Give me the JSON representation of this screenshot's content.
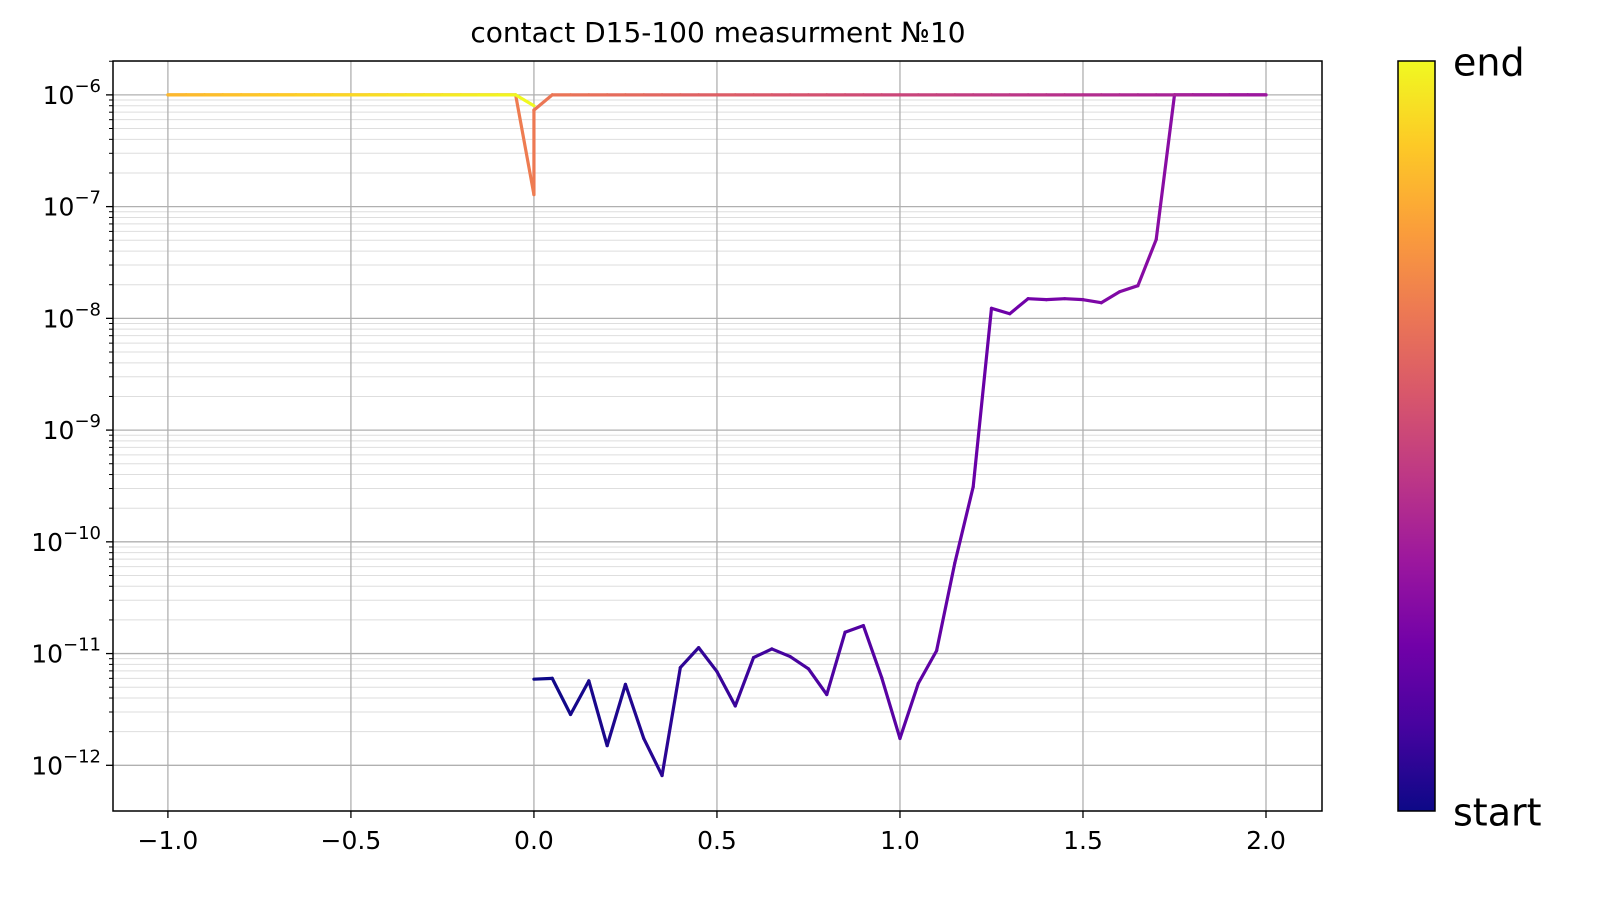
{
  "chart_data": {
    "type": "line",
    "title": "contact D15-100 measurment №10",
    "x": [
      0,
      0.05,
      0.1,
      0.15,
      0.2,
      0.25,
      0.3,
      0.35,
      0.4,
      0.45,
      0.5,
      0.55,
      0.6,
      0.65,
      0.7,
      0.75,
      0.8,
      0.85,
      0.9,
      0.95,
      1.0,
      1.05,
      1.1,
      1.15,
      1.2,
      1.25,
      1.3,
      1.35,
      1.4,
      1.45,
      1.5,
      1.55,
      1.6,
      1.65,
      1.7,
      1.75,
      1.8,
      1.85,
      1.9,
      1.95,
      2.0,
      1.95,
      1.9,
      1.85,
      1.8,
      1.75,
      1.7,
      1.65,
      1.6,
      1.55,
      1.5,
      1.45,
      1.4,
      1.35,
      1.3,
      1.25,
      1.2,
      1.15,
      1.1,
      1.05,
      1.0,
      0.95,
      0.9,
      0.85,
      0.8,
      0.75,
      0.7,
      0.65,
      0.6,
      0.55,
      0.5,
      0.45,
      0.4,
      0.35,
      0.3,
      0.25,
      0.2,
      0.15,
      0.1,
      0.05,
      0,
      0,
      -0.05,
      -0.1,
      -0.15,
      -0.2,
      -0.25,
      -0.3,
      -0.35,
      -0.4,
      -0.45,
      -0.5,
      -0.55,
      -0.6,
      -0.65,
      -0.7,
      -0.75,
      -0.8,
      -0.85,
      -0.9,
      -0.95,
      -1.0,
      -0.95,
      -0.9,
      -0.85,
      -0.8,
      -0.75,
      -0.7,
      -0.65,
      -0.6,
      -0.55,
      -0.5,
      -0.45,
      -0.4,
      -0.35,
      -0.3,
      -0.25,
      -0.2,
      -0.15,
      -0.1,
      -0.05,
      0
    ],
    "series": [
      {
        "values": [
          5.9e-12,
          6e-12,
          2.85e-12,
          5.7e-12,
          1.5e-12,
          5.3e-12,
          1.74e-12,
          8.1e-13,
          7.5e-12,
          1.13e-11,
          6.9e-12,
          3.4e-12,
          9.2e-12,
          1.1e-11,
          9.4e-12,
          7.3e-12,
          4.3e-12,
          1.55e-11,
          1.78e-11,
          6.1e-12,
          1.74e-12,
          5.4e-12,
          1.06e-11,
          6.5e-11,
          3.1e-10,
          1.23e-08,
          1.1e-08,
          1.5e-08,
          1.47e-08,
          1.5e-08,
          1.47e-08,
          1.38e-08,
          1.73e-08,
          1.96e-08,
          5.07e-08,
          1e-06,
          1e-06,
          1e-06,
          1e-06,
          1e-06,
          1e-06,
          1e-06,
          1e-06,
          1e-06,
          1e-06,
          1e-06,
          1e-06,
          1e-06,
          1e-06,
          1e-06,
          1e-06,
          1e-06,
          1e-06,
          1e-06,
          1e-06,
          1e-06,
          1e-06,
          1e-06,
          1e-06,
          1e-06,
          1e-06,
          1e-06,
          1e-06,
          1e-06,
          1e-06,
          1e-06,
          1e-06,
          1e-06,
          1e-06,
          1e-06,
          1e-06,
          1e-06,
          1e-06,
          1e-06,
          1e-06,
          1e-06,
          1e-06,
          1e-06,
          1e-06,
          1e-06,
          7.3e-07,
          1.28e-07,
          1e-06,
          1e-06,
          1e-06,
          1e-06,
          1e-06,
          1e-06,
          1e-06,
          1e-06,
          1e-06,
          1e-06,
          1e-06,
          1e-06,
          1e-06,
          1e-06,
          1e-06,
          1e-06,
          1e-06,
          1e-06,
          1e-06,
          1e-06,
          1e-06,
          1e-06,
          1e-06,
          1e-06,
          1e-06,
          1e-06,
          1e-06,
          1e-06,
          1e-06,
          1e-06,
          1e-06,
          1e-06,
          1e-06,
          1e-06,
          1e-06,
          1e-06,
          1e-06,
          1e-06,
          1e-06,
          8e-07
        ]
      }
    ],
    "xlim": [
      -1.15,
      2.153
    ],
    "xticks": [
      {
        "value": -1.0,
        "label": "−1.0"
      },
      {
        "value": -0.5,
        "label": "−0.5"
      },
      {
        "value": 0,
        "label": "0.0"
      },
      {
        "value": 0.5,
        "label": "0.5"
      },
      {
        "value": 1.0,
        "label": "1.0"
      },
      {
        "value": 1.5,
        "label": "1.5"
      },
      {
        "value": 2.0,
        "label": "2.0"
      }
    ],
    "ylim": [
      3.9e-13,
      2.01e-06
    ],
    "yticks": [
      {
        "value": 1e-12,
        "label": "10−12"
      },
      {
        "value": 1e-11,
        "label": "10−11"
      },
      {
        "value": 1e-10,
        "label": "10−10"
      },
      {
        "value": 1e-09,
        "label": "10−9"
      },
      {
        "value": 1e-08,
        "label": "10−8"
      },
      {
        "value": 1e-07,
        "label": "10−7"
      },
      {
        "value": 1e-06,
        "label": "10−6"
      }
    ],
    "log_y": true,
    "grid": true,
    "minor_grid": true,
    "colorbar": {
      "labels": [
        "start",
        "end"
      ],
      "colors": [
        "#0d0887",
        "#46039f",
        "#7201a8",
        "#9c179e",
        "#bd3786",
        "#d8576b",
        "#ed7953",
        "#fb9f3a",
        "#fdca26",
        "#f0f921"
      ]
    }
  }
}
